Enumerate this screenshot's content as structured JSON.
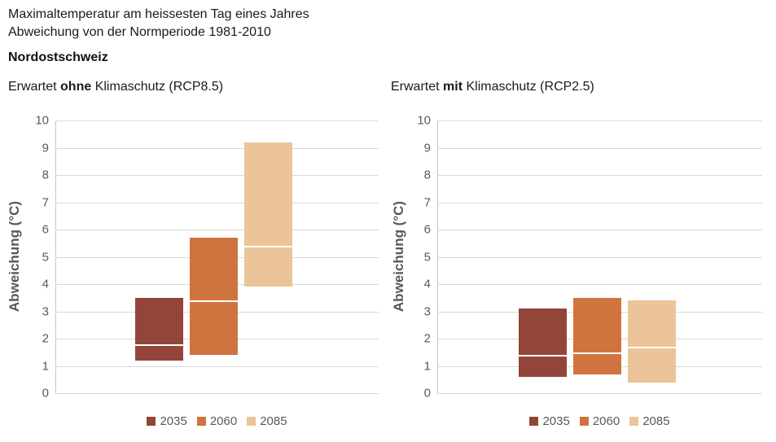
{
  "header": {
    "title_line1": "Maximaltemperatur am heissesten Tag eines Jahres",
    "title_line2": "Abweichung von der Normperiode 1981-2010",
    "region": "Nordostschweiz"
  },
  "colors": {
    "grid": "#D9D9D9",
    "axis": "#C6C6C6",
    "tick_label": "#595959",
    "legend_text": "#595959",
    "median_line": "#FFFFFF",
    "series_2035": "#94453A",
    "series_2060": "#D0743F",
    "series_2085": "#EBC499"
  },
  "chart_data": [
    {
      "type": "bar",
      "variant": "floating-range-bars-with-median-line",
      "title": "Erwartet ohne Klimaschutz (RCP8.5)",
      "subtitle_prefix": "Erwartet",
      "subtitle_emphasis": "ohne",
      "subtitle_suffix": "Klimaschutz (RCP8.5)",
      "ylabel": "Abweichung (°C)",
      "xlabel": "",
      "ylim": [
        0,
        10
      ],
      "yticks": [
        0,
        1,
        2,
        3,
        4,
        5,
        6,
        7,
        8,
        9,
        10
      ],
      "grid": true,
      "legend_position": "bottom",
      "categories": [
        "2035",
        "2060",
        "2085"
      ],
      "series": [
        {
          "name": "2035",
          "color": "#94453A",
          "low": 1.2,
          "high": 3.5,
          "median": 1.8
        },
        {
          "name": "2060",
          "color": "#D0743F",
          "low": 1.4,
          "high": 5.7,
          "median": 3.4
        },
        {
          "name": "2085",
          "color": "#EBC499",
          "low": 3.9,
          "high": 9.2,
          "median": 5.4
        }
      ]
    },
    {
      "type": "bar",
      "variant": "floating-range-bars-with-median-line",
      "title": "Erwartet mit Klimaschutz (RCP2.5)",
      "subtitle_prefix": "Erwartet",
      "subtitle_emphasis": "mit",
      "subtitle_suffix": "Klimaschutz (RCP2.5)",
      "ylabel": "Abweichung (°C)",
      "xlabel": "",
      "ylim": [
        0,
        10
      ],
      "yticks": [
        0,
        1,
        2,
        3,
        4,
        5,
        6,
        7,
        8,
        9,
        10
      ],
      "grid": true,
      "legend_position": "bottom",
      "categories": [
        "2035",
        "2060",
        "2085"
      ],
      "series": [
        {
          "name": "2035",
          "color": "#94453A",
          "low": 0.6,
          "high": 3.1,
          "median": 1.4
        },
        {
          "name": "2060",
          "color": "#D0743F",
          "low": 0.7,
          "high": 3.5,
          "median": 1.5
        },
        {
          "name": "2085",
          "color": "#EBC499",
          "low": 0.4,
          "high": 3.4,
          "median": 1.7
        }
      ]
    }
  ]
}
